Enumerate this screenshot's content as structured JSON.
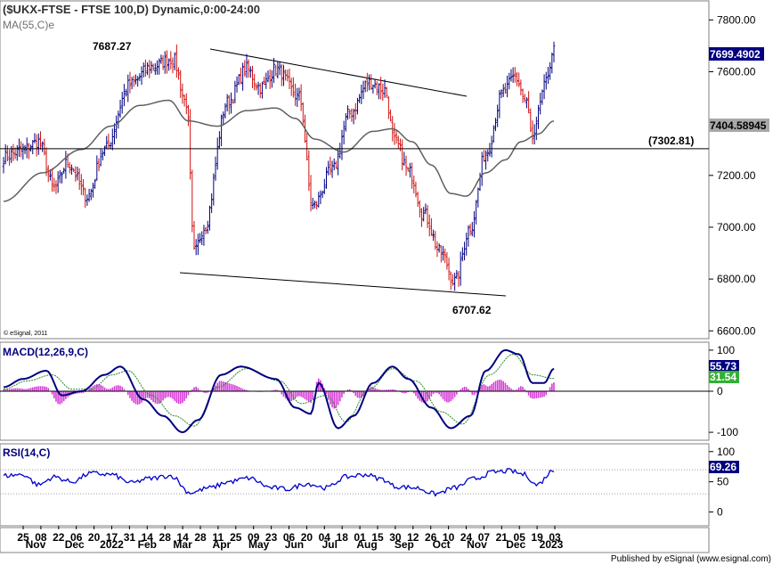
{
  "chart_data": [
    {
      "type": "candlestick",
      "title": "($UKX-FTSE - FTSE 100,D) Dynamic,0:00-24:00",
      "indicator_label": "MA(55,C)e",
      "y_ticks": [
        6600,
        6800,
        7000,
        7200,
        7400,
        7600,
        7800
      ],
      "y_tick_labels": [
        "6600.00",
        "6800.00",
        "7000.00",
        "7200.00",
        "7400.00",
        "7600.00",
        "7800.00"
      ],
      "ylim": [
        6570,
        7870
      ],
      "last_price": 7699.4902,
      "last_price_label": "7699.4902",
      "ma_value": 7404.58945,
      "ma_value_label": "7404.58945",
      "horizontal_level": 7302.81,
      "horizontal_level_label": "(7302.81)",
      "high_annotation": "7687.27",
      "low_annotation": "6707.62",
      "source_note": "© eSignal, 2011",
      "close_anchors": [
        [
          0,
          7270
        ],
        [
          10,
          7300
        ],
        [
          18,
          7330
        ],
        [
          26,
          7150
        ],
        [
          33,
          7250
        ],
        [
          43,
          7120
        ],
        [
          52,
          7300
        ],
        [
          65,
          7550
        ],
        [
          76,
          7620
        ],
        [
          87,
          7650
        ],
        [
          94,
          7480
        ],
        [
          98,
          6900
        ],
        [
          103,
          7000
        ],
        [
          115,
          7480
        ],
        [
          125,
          7610
        ],
        [
          132,
          7540
        ],
        [
          140,
          7610
        ],
        [
          152,
          7500
        ],
        [
          159,
          7080
        ],
        [
          169,
          7220
        ],
        [
          178,
          7440
        ],
        [
          188,
          7560
        ],
        [
          196,
          7530
        ],
        [
          201,
          7330
        ],
        [
          209,
          7210
        ],
        [
          216,
          7050
        ],
        [
          225,
          6900
        ],
        [
          232,
          6790
        ],
        [
          240,
          7000
        ],
        [
          248,
          7290
        ],
        [
          257,
          7520
        ],
        [
          263,
          7580
        ],
        [
          269,
          7480
        ],
        [
          272,
          7330
        ],
        [
          278,
          7540
        ],
        [
          283,
          7690
        ]
      ],
      "ma_anchors": [
        [
          0,
          7100
        ],
        [
          20,
          7210
        ],
        [
          40,
          7300
        ],
        [
          55,
          7390
        ],
        [
          70,
          7470
        ],
        [
          85,
          7490
        ],
        [
          95,
          7410
        ],
        [
          110,
          7390
        ],
        [
          125,
          7450
        ],
        [
          140,
          7460
        ],
        [
          150,
          7420
        ],
        [
          160,
          7340
        ],
        [
          175,
          7290
        ],
        [
          190,
          7370
        ],
        [
          200,
          7380
        ],
        [
          210,
          7330
        ],
        [
          220,
          7240
        ],
        [
          230,
          7130
        ],
        [
          238,
          7120
        ],
        [
          248,
          7210
        ],
        [
          258,
          7260
        ],
        [
          266,
          7330
        ],
        [
          275,
          7360
        ],
        [
          283,
          7410
        ]
      ]
    },
    {
      "type": "macd",
      "label": "MACD(12,26,9,C)",
      "y_ticks": [
        -100,
        0,
        100
      ],
      "ylim": [
        -115,
        115
      ],
      "macd_value_label": "55.73",
      "signal_value_label": "31.54",
      "macd_anchors": [
        [
          0,
          10
        ],
        [
          10,
          30
        ],
        [
          22,
          50
        ],
        [
          30,
          -10
        ],
        [
          40,
          0
        ],
        [
          52,
          40
        ],
        [
          60,
          60
        ],
        [
          72,
          -20
        ],
        [
          82,
          -60
        ],
        [
          92,
          -100
        ],
        [
          100,
          -70
        ],
        [
          112,
          40
        ],
        [
          122,
          60
        ],
        [
          140,
          30
        ],
        [
          150,
          -40
        ],
        [
          158,
          -55
        ],
        [
          162,
          20
        ],
        [
          172,
          -90
        ],
        [
          180,
          -60
        ],
        [
          190,
          20
        ],
        [
          200,
          60
        ],
        [
          208,
          30
        ],
        [
          220,
          -40
        ],
        [
          230,
          -90
        ],
        [
          240,
          -60
        ],
        [
          248,
          50
        ],
        [
          258,
          100
        ],
        [
          265,
          90
        ],
        [
          272,
          20
        ],
        [
          278,
          20
        ],
        [
          283,
          55
        ]
      ],
      "signal_anchors": [
        [
          0,
          5
        ],
        [
          12,
          25
        ],
        [
          25,
          40
        ],
        [
          35,
          5
        ],
        [
          45,
          5
        ],
        [
          56,
          40
        ],
        [
          64,
          50
        ],
        [
          76,
          -10
        ],
        [
          88,
          -60
        ],
        [
          98,
          -85
        ],
        [
          110,
          10
        ],
        [
          125,
          55
        ],
        [
          142,
          25
        ],
        [
          153,
          -30
        ],
        [
          166,
          -10
        ],
        [
          176,
          -75
        ],
        [
          188,
          5
        ],
        [
          200,
          55
        ],
        [
          212,
          25
        ],
        [
          225,
          -50
        ],
        [
          236,
          -80
        ],
        [
          250,
          40
        ],
        [
          262,
          90
        ],
        [
          272,
          40
        ],
        [
          283,
          31
        ]
      ]
    },
    {
      "type": "line",
      "label": "RSI(14,C)",
      "y_ticks": [
        0,
        50,
        100
      ],
      "ylim": [
        -20,
        110
      ],
      "rsi_value_label": "69.26",
      "rsi_anchors": [
        [
          0,
          60
        ],
        [
          10,
          62
        ],
        [
          18,
          45
        ],
        [
          26,
          58
        ],
        [
          35,
          50
        ],
        [
          45,
          64
        ],
        [
          55,
          62
        ],
        [
          66,
          48
        ],
        [
          74,
          55
        ],
        [
          86,
          60
        ],
        [
          96,
          32
        ],
        [
          106,
          40
        ],
        [
          116,
          50
        ],
        [
          126,
          56
        ],
        [
          138,
          40
        ],
        [
          146,
          38
        ],
        [
          156,
          47
        ],
        [
          166,
          40
        ],
        [
          176,
          58
        ],
        [
          186,
          62
        ],
        [
          194,
          55
        ],
        [
          202,
          42
        ],
        [
          212,
          40
        ],
        [
          222,
          30
        ],
        [
          232,
          40
        ],
        [
          242,
          55
        ],
        [
          252,
          66
        ],
        [
          260,
          68
        ],
        [
          268,
          62
        ],
        [
          274,
          45
        ],
        [
          283,
          69
        ]
      ],
      "ref_lines": [
        30,
        70
      ]
    }
  ],
  "x_axis": {
    "day_labels": [
      "25",
      "08",
      "22",
      "06",
      "20",
      "17",
      "31",
      "14",
      "28",
      "14",
      "28",
      "11",
      "25",
      "09",
      "23",
      "06",
      "20",
      "04",
      "18",
      "01",
      "15",
      "30",
      "12",
      "26",
      "10",
      "24",
      "07",
      "21",
      "05",
      "19",
      "03"
    ],
    "month_labels": [
      "Nov",
      "Dec",
      "2022",
      "Feb",
      "Mar",
      "Apr",
      "May",
      "Jun",
      "Jul",
      "Aug",
      "Sep",
      "Oct",
      "Nov",
      "Dec",
      "2023"
    ]
  },
  "footer": "Published by eSignal (www.esignal.com)",
  "colors": {
    "up": "#000080",
    "down": "#d01010",
    "ma": "#606060",
    "macd_line": "#000080",
    "signal_line": "#2a8a2a",
    "histogram": "#d63cd6",
    "rsi_line": "#0000cc",
    "label_fill": "#000080",
    "label_green": "#33b033"
  }
}
